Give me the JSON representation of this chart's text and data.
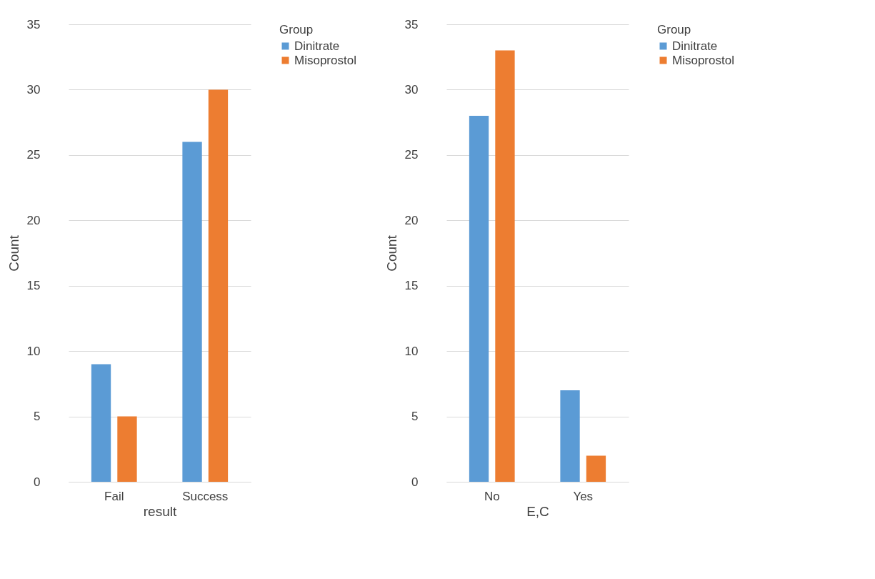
{
  "chart_data": [
    {
      "type": "bar",
      "xlabel": "result",
      "ylabel": "Count",
      "legend_title": "Group",
      "categories": [
        "Fail",
        "Success"
      ],
      "series": [
        {
          "name": "Dinitrate",
          "color": "#5b9bd5",
          "values": [
            9,
            26
          ]
        },
        {
          "name": "Misoprostol",
          "color": "#ed7d31",
          "values": [
            5,
            30
          ]
        }
      ],
      "ylim": [
        0,
        35
      ],
      "yticks": [
        0,
        5,
        10,
        15,
        20,
        25,
        30,
        35
      ],
      "grid": "y",
      "legend": "right"
    },
    {
      "type": "bar",
      "xlabel": "E,C",
      "ylabel": "Count",
      "legend_title": "Group",
      "categories": [
        "No",
        "Yes"
      ],
      "series": [
        {
          "name": "Dinitrate",
          "color": "#5b9bd5",
          "values": [
            28,
            7
          ]
        },
        {
          "name": "Misoprostol",
          "color": "#ed7d31",
          "values": [
            33,
            2
          ]
        }
      ],
      "ylim": [
        0,
        35
      ],
      "yticks": [
        0,
        5,
        10,
        15,
        20,
        25,
        30,
        35
      ],
      "grid": "y",
      "legend": "right"
    }
  ]
}
